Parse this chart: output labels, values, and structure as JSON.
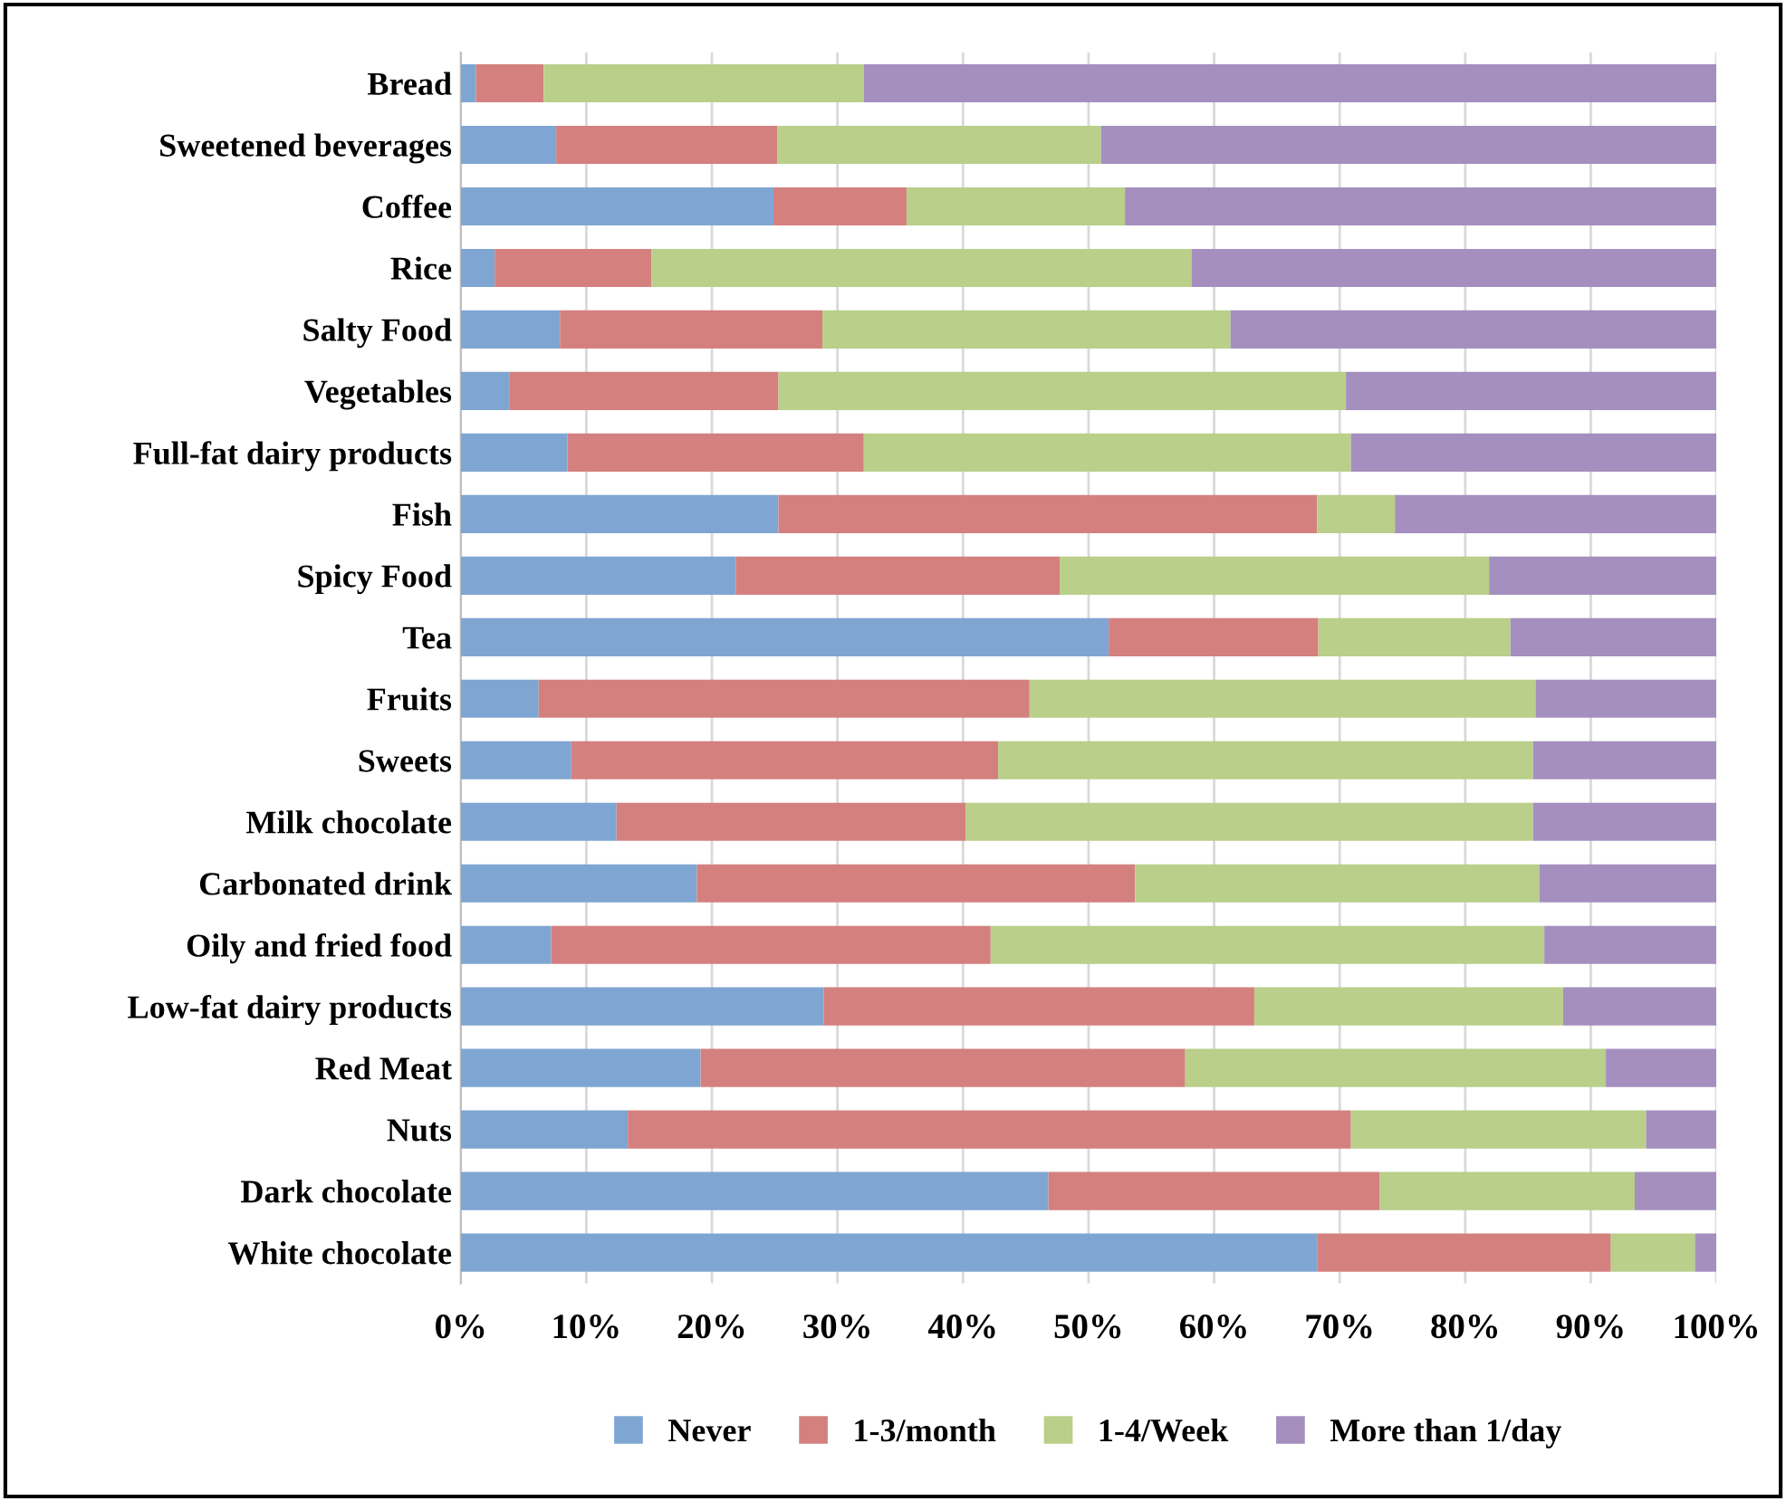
{
  "chart_data": {
    "type": "bar",
    "orientation": "horizontal",
    "stacked": true,
    "categories": [
      "Bread",
      "Sweetened beverages",
      "Coffee",
      "Rice",
      "Salty Food",
      "Vegetables",
      "Full-fat dairy products",
      "Fish",
      "Spicy Food",
      "Tea",
      "Fruits",
      "Sweets",
      "Milk chocolate",
      "Carbonated drink",
      "Oily and fried food",
      "Low-fat dairy products",
      "Red Meat",
      "Nuts",
      "Dark chocolate",
      "White chocolate"
    ],
    "series": [
      {
        "name": "Never",
        "color": "#7fa6d2",
        "values": [
          1.2,
          7.6,
          24.9,
          2.7,
          7.9,
          3.9,
          8.5,
          25.3,
          21.9,
          51.6,
          6.2,
          8.8,
          12.4,
          18.8,
          7.2,
          28.9,
          19.1,
          13.3,
          46.8,
          68.2
        ]
      },
      {
        "name": "1-3/month",
        "color": "#d4807f",
        "values": [
          5.4,
          17.6,
          10.6,
          12.5,
          20.9,
          21.4,
          23.6,
          42.9,
          25.8,
          16.7,
          39.1,
          34.0,
          27.8,
          34.9,
          35.0,
          34.3,
          38.6,
          57.6,
          26.4,
          23.4
        ]
      },
      {
        "name": "1-4/Week",
        "color": "#b9cf8a",
        "values": [
          25.5,
          25.8,
          17.4,
          43.0,
          32.5,
          45.2,
          38.8,
          6.2,
          34.2,
          15.3,
          40.3,
          42.6,
          45.2,
          32.2,
          44.1,
          24.6,
          33.5,
          23.5,
          20.3,
          6.7
        ]
      },
      {
        "name": "More than 1/day",
        "color": "#a48fbf",
        "values": [
          67.9,
          49.0,
          47.1,
          41.8,
          38.7,
          29.5,
          29.1,
          25.6,
          18.1,
          16.4,
          14.4,
          14.6,
          14.6,
          14.1,
          13.7,
          12.2,
          8.8,
          5.6,
          6.5,
          1.7
        ]
      }
    ],
    "xlim": [
      0,
      100
    ],
    "xticks": [
      {
        "value": 0,
        "label": "0%"
      },
      {
        "value": 10,
        "label": "10%"
      },
      {
        "value": 20,
        "label": "20%"
      },
      {
        "value": 30,
        "label": "30%"
      },
      {
        "value": 40,
        "label": "40%"
      },
      {
        "value": 50,
        "label": "50%"
      },
      {
        "value": 60,
        "label": "60%"
      },
      {
        "value": 70,
        "label": "70%"
      },
      {
        "value": 80,
        "label": "80%"
      },
      {
        "value": 90,
        "label": "90%"
      },
      {
        "value": 100,
        "label": "100%"
      }
    ],
    "grid": "x",
    "legend": "bottom"
  }
}
